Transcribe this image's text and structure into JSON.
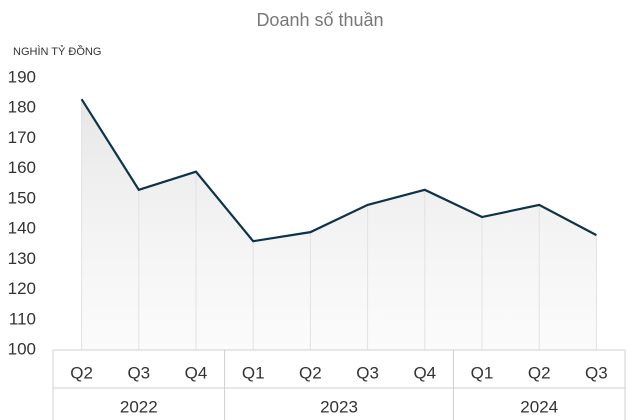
{
  "chart_data": {
    "type": "line",
    "title": "Doanh số thuần",
    "y_unit": "NGHÌN TỶ ĐỒNG",
    "groups": [
      {
        "name": "2022",
        "categories": [
          "Q2",
          "Q3",
          "Q4"
        ]
      },
      {
        "name": "2023",
        "categories": [
          "Q1",
          "Q2",
          "Q3",
          "Q4"
        ]
      },
      {
        "name": "2024",
        "categories": [
          "Q1",
          "Q2",
          "Q3"
        ]
      }
    ],
    "values": [
      183,
      153,
      159,
      136,
      139,
      148,
      153,
      144,
      148,
      138
    ],
    "color": "#0d3349",
    "ylim": [
      100,
      190
    ],
    "yticks": [
      100,
      110,
      120,
      130,
      140,
      150,
      160,
      170,
      180,
      190
    ]
  }
}
